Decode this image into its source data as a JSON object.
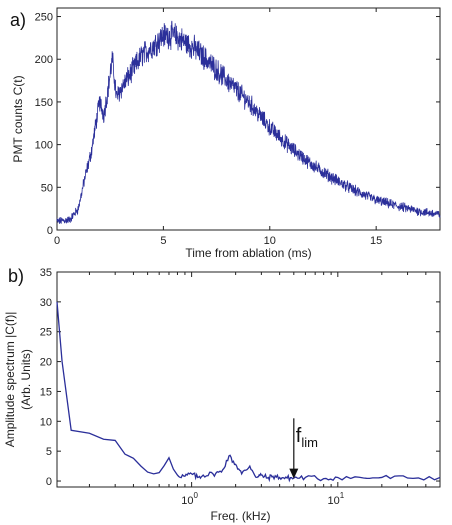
{
  "series_color": "#2b2f9a",
  "chart_data": [
    {
      "panel_label": "a)",
      "type": "line",
      "xlabel": "Time from ablation (ms)",
      "ylabel": "PMT counts C(t)",
      "xlim": [
        0,
        18
      ],
      "ylim": [
        0,
        260
      ],
      "xticks": [
        0,
        5,
        10,
        15
      ],
      "yticks": [
        0,
        50,
        100,
        150,
        200,
        250
      ],
      "noise_amplitude": 9,
      "envelope": {
        "x": [
          0,
          0.6,
          1.0,
          1.3,
          1.6,
          1.8,
          2.0,
          2.2,
          2.4,
          2.6,
          2.8,
          3.0,
          3.5,
          4.0,
          4.5,
          5.0,
          5.5,
          6.0,
          6.5,
          7.0,
          8.0,
          9.0,
          10.0,
          11.0,
          12.0,
          13.0,
          14.0,
          15.0,
          16.0,
          17.0,
          18.0
        ],
        "y": [
          10,
          12,
          25,
          60,
          90,
          120,
          150,
          135,
          165,
          200,
          155,
          165,
          185,
          205,
          215,
          228,
          228,
          220,
          212,
          200,
          175,
          150,
          120,
          96,
          76,
          60,
          46,
          35,
          28,
          22,
          18
        ]
      }
    },
    {
      "panel_label": "b)",
      "type": "line",
      "xscale": "log",
      "xlabel": "Freq. (kHz)",
      "ylabel": "Amplitude spectrum |C(f)|",
      "ylabel2": "(Arb. Units)",
      "xlim": [
        0.12,
        50
      ],
      "ylim": [
        -1,
        35
      ],
      "xticks": [
        1,
        10
      ],
      "xtick_labels": [
        {
          "base": "10",
          "exp": "0"
        },
        {
          "base": "10",
          "exp": "1"
        }
      ],
      "yticks": [
        0,
        5,
        10,
        15,
        20,
        25,
        30,
        35
      ],
      "x": [
        0.12,
        0.13,
        0.15,
        0.2,
        0.25,
        0.3,
        0.35,
        0.4,
        0.45,
        0.5,
        0.55,
        0.6,
        0.65,
        0.7,
        0.75,
        0.8,
        0.9,
        1.0,
        1.1,
        1.2,
        1.4,
        1.6,
        1.8,
        2.0,
        2.2,
        2.5,
        2.8,
        3.0,
        3.3,
        3.6,
        4.0,
        4.5,
        5.0,
        6.0,
        8.0,
        10,
        15,
        20,
        30,
        50
      ],
      "y": [
        30,
        20,
        8.5,
        8,
        7,
        6.8,
        4.5,
        3.8,
        2.5,
        1.5,
        1.2,
        1.4,
        2.6,
        3.9,
        2.0,
        1.0,
        0.8,
        1.2,
        0.6,
        1.0,
        1.2,
        1.5,
        4.2,
        2.8,
        1.2,
        2.5,
        0.6,
        1.0,
        0.5,
        0.8,
        0.6,
        0.5,
        0.5,
        0.6,
        0.4,
        0.6,
        0.5,
        0.6,
        0.5,
        0.6
      ],
      "annotation": {
        "base": "f",
        "sub": "lim",
        "x": 5,
        "y": 0.4
      }
    }
  ]
}
